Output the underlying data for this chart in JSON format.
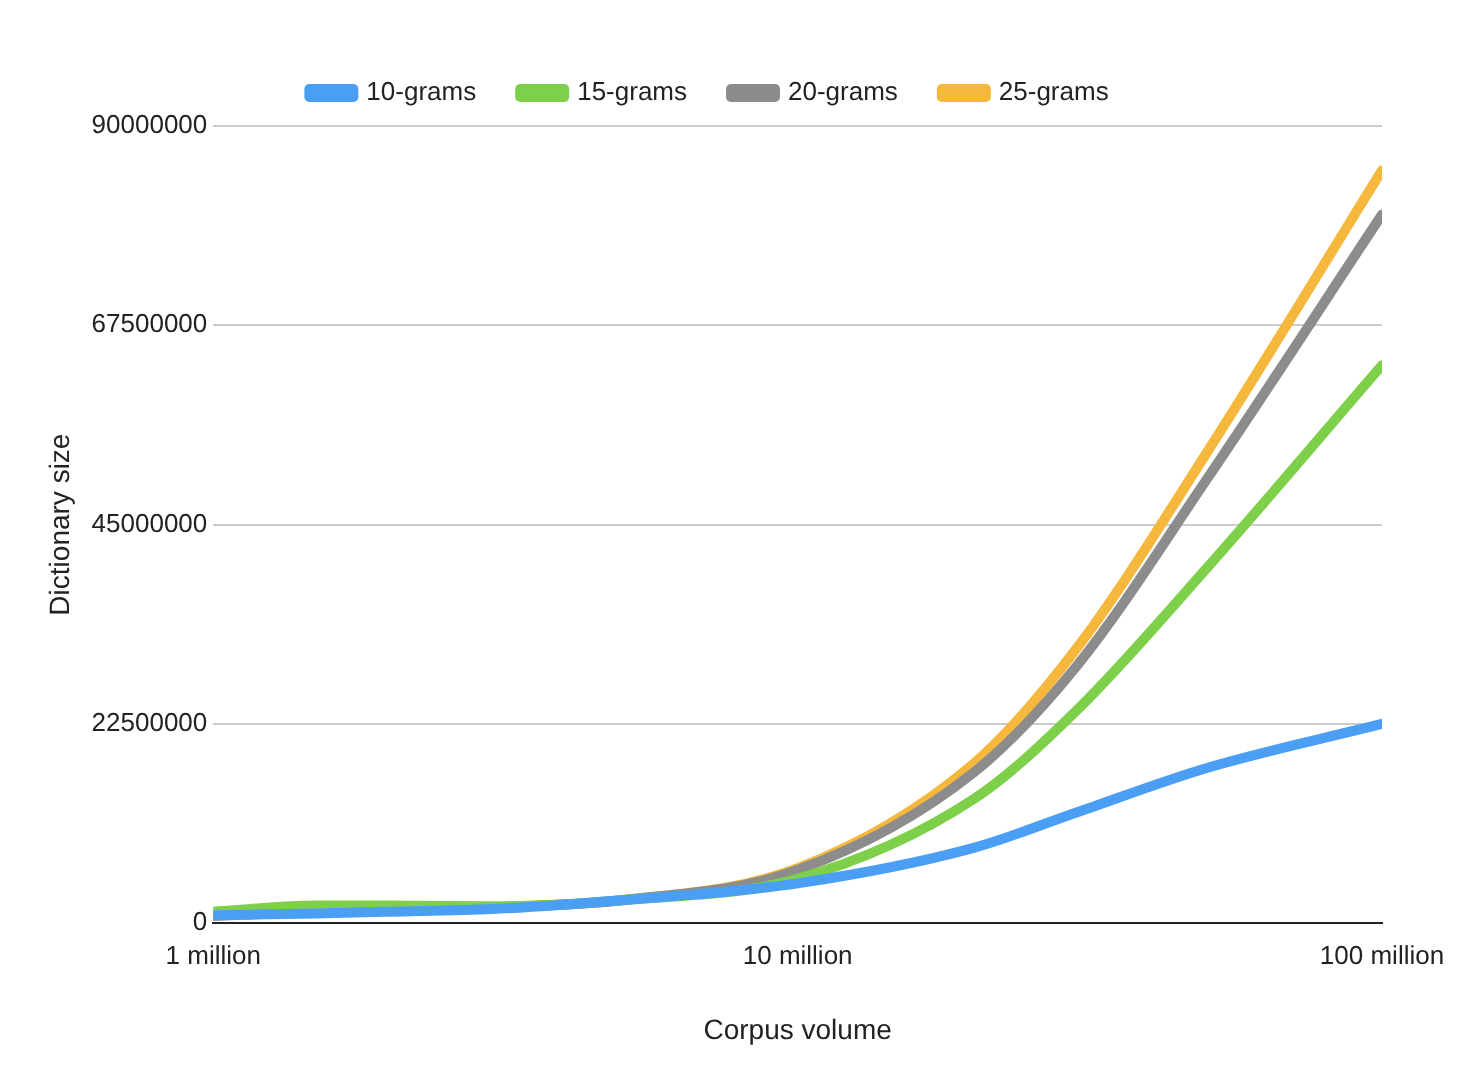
{
  "chart_data": {
    "type": "line",
    "xlabel": "Corpus volume",
    "ylabel": "Dictionary size",
    "log": "x",
    "grid": "y",
    "legend": "top",
    "marker": "none",
    "line_style": "solid",
    "x": [
      1000000,
      1500000,
      2000000,
      3000000,
      5000000,
      10000000,
      20000000,
      30000000,
      50000000,
      100000000
    ],
    "xlim": [
      1000000,
      100000000
    ],
    "xticks": [
      {
        "value": 1000000,
        "label": "1 million"
      },
      {
        "value": 10000000,
        "label": "10 million"
      },
      {
        "value": 100000000,
        "label": "100 million"
      }
    ],
    "ylim": [
      0,
      90000000
    ],
    "yticks": [
      0,
      22500000,
      45000000,
      67500000,
      90000000
    ],
    "series": [
      {
        "name": "10-grams",
        "color": "#4a9ff5",
        "values": [
          900000,
          1100000,
          1300000,
          1600000,
          2600000,
          4500000,
          8500000,
          12500000,
          17500000,
          22500000
        ]
      },
      {
        "name": "15-grams",
        "color": "#7ed04b",
        "values": [
          1300000,
          2000000,
          2000000,
          1900000,
          2600000,
          5000000,
          14000000,
          24000000,
          40000000,
          63000000
        ]
      },
      {
        "name": "20-grams",
        "color": "#8c8c8c",
        "values": [
          800000,
          1300000,
          1600000,
          1800000,
          2600000,
          6000000,
          17000000,
          29000000,
          50000000,
          80000000
        ]
      },
      {
        "name": "25-grams",
        "color": "#f5b83d",
        "values": [
          null,
          null,
          null,
          1800000,
          2600000,
          6200000,
          18000000,
          31000000,
          53000000,
          85000000
        ]
      }
    ]
  }
}
